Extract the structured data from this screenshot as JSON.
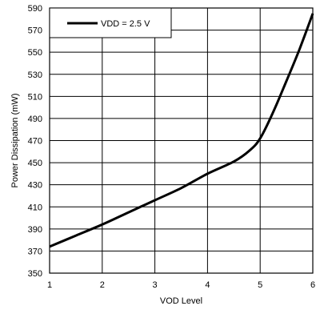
{
  "chart_data": {
    "type": "line",
    "title": "",
    "xlabel": "VOD Level",
    "ylabel": "Power Dissipation (mW)",
    "xlim": [
      1,
      6
    ],
    "ylim": [
      350,
      590
    ],
    "xticks": [
      1,
      2,
      3,
      4,
      5,
      6
    ],
    "yticks": [
      350,
      370,
      390,
      410,
      430,
      450,
      470,
      490,
      510,
      530,
      550,
      570,
      590
    ],
    "grid": true,
    "legend_position": "top-left",
    "series": [
      {
        "name": "VDD = 2.5 V",
        "color": "#000000",
        "x": [
          1,
          1.5,
          2,
          2.5,
          3,
          3.5,
          4,
          4.5,
          4.8,
          5,
          5.25,
          5.5,
          5.75,
          6
        ],
        "y": [
          374,
          384,
          394,
          405,
          416,
          427,
          440,
          451,
          461,
          472,
          496,
          524,
          553,
          585
        ]
      }
    ]
  }
}
